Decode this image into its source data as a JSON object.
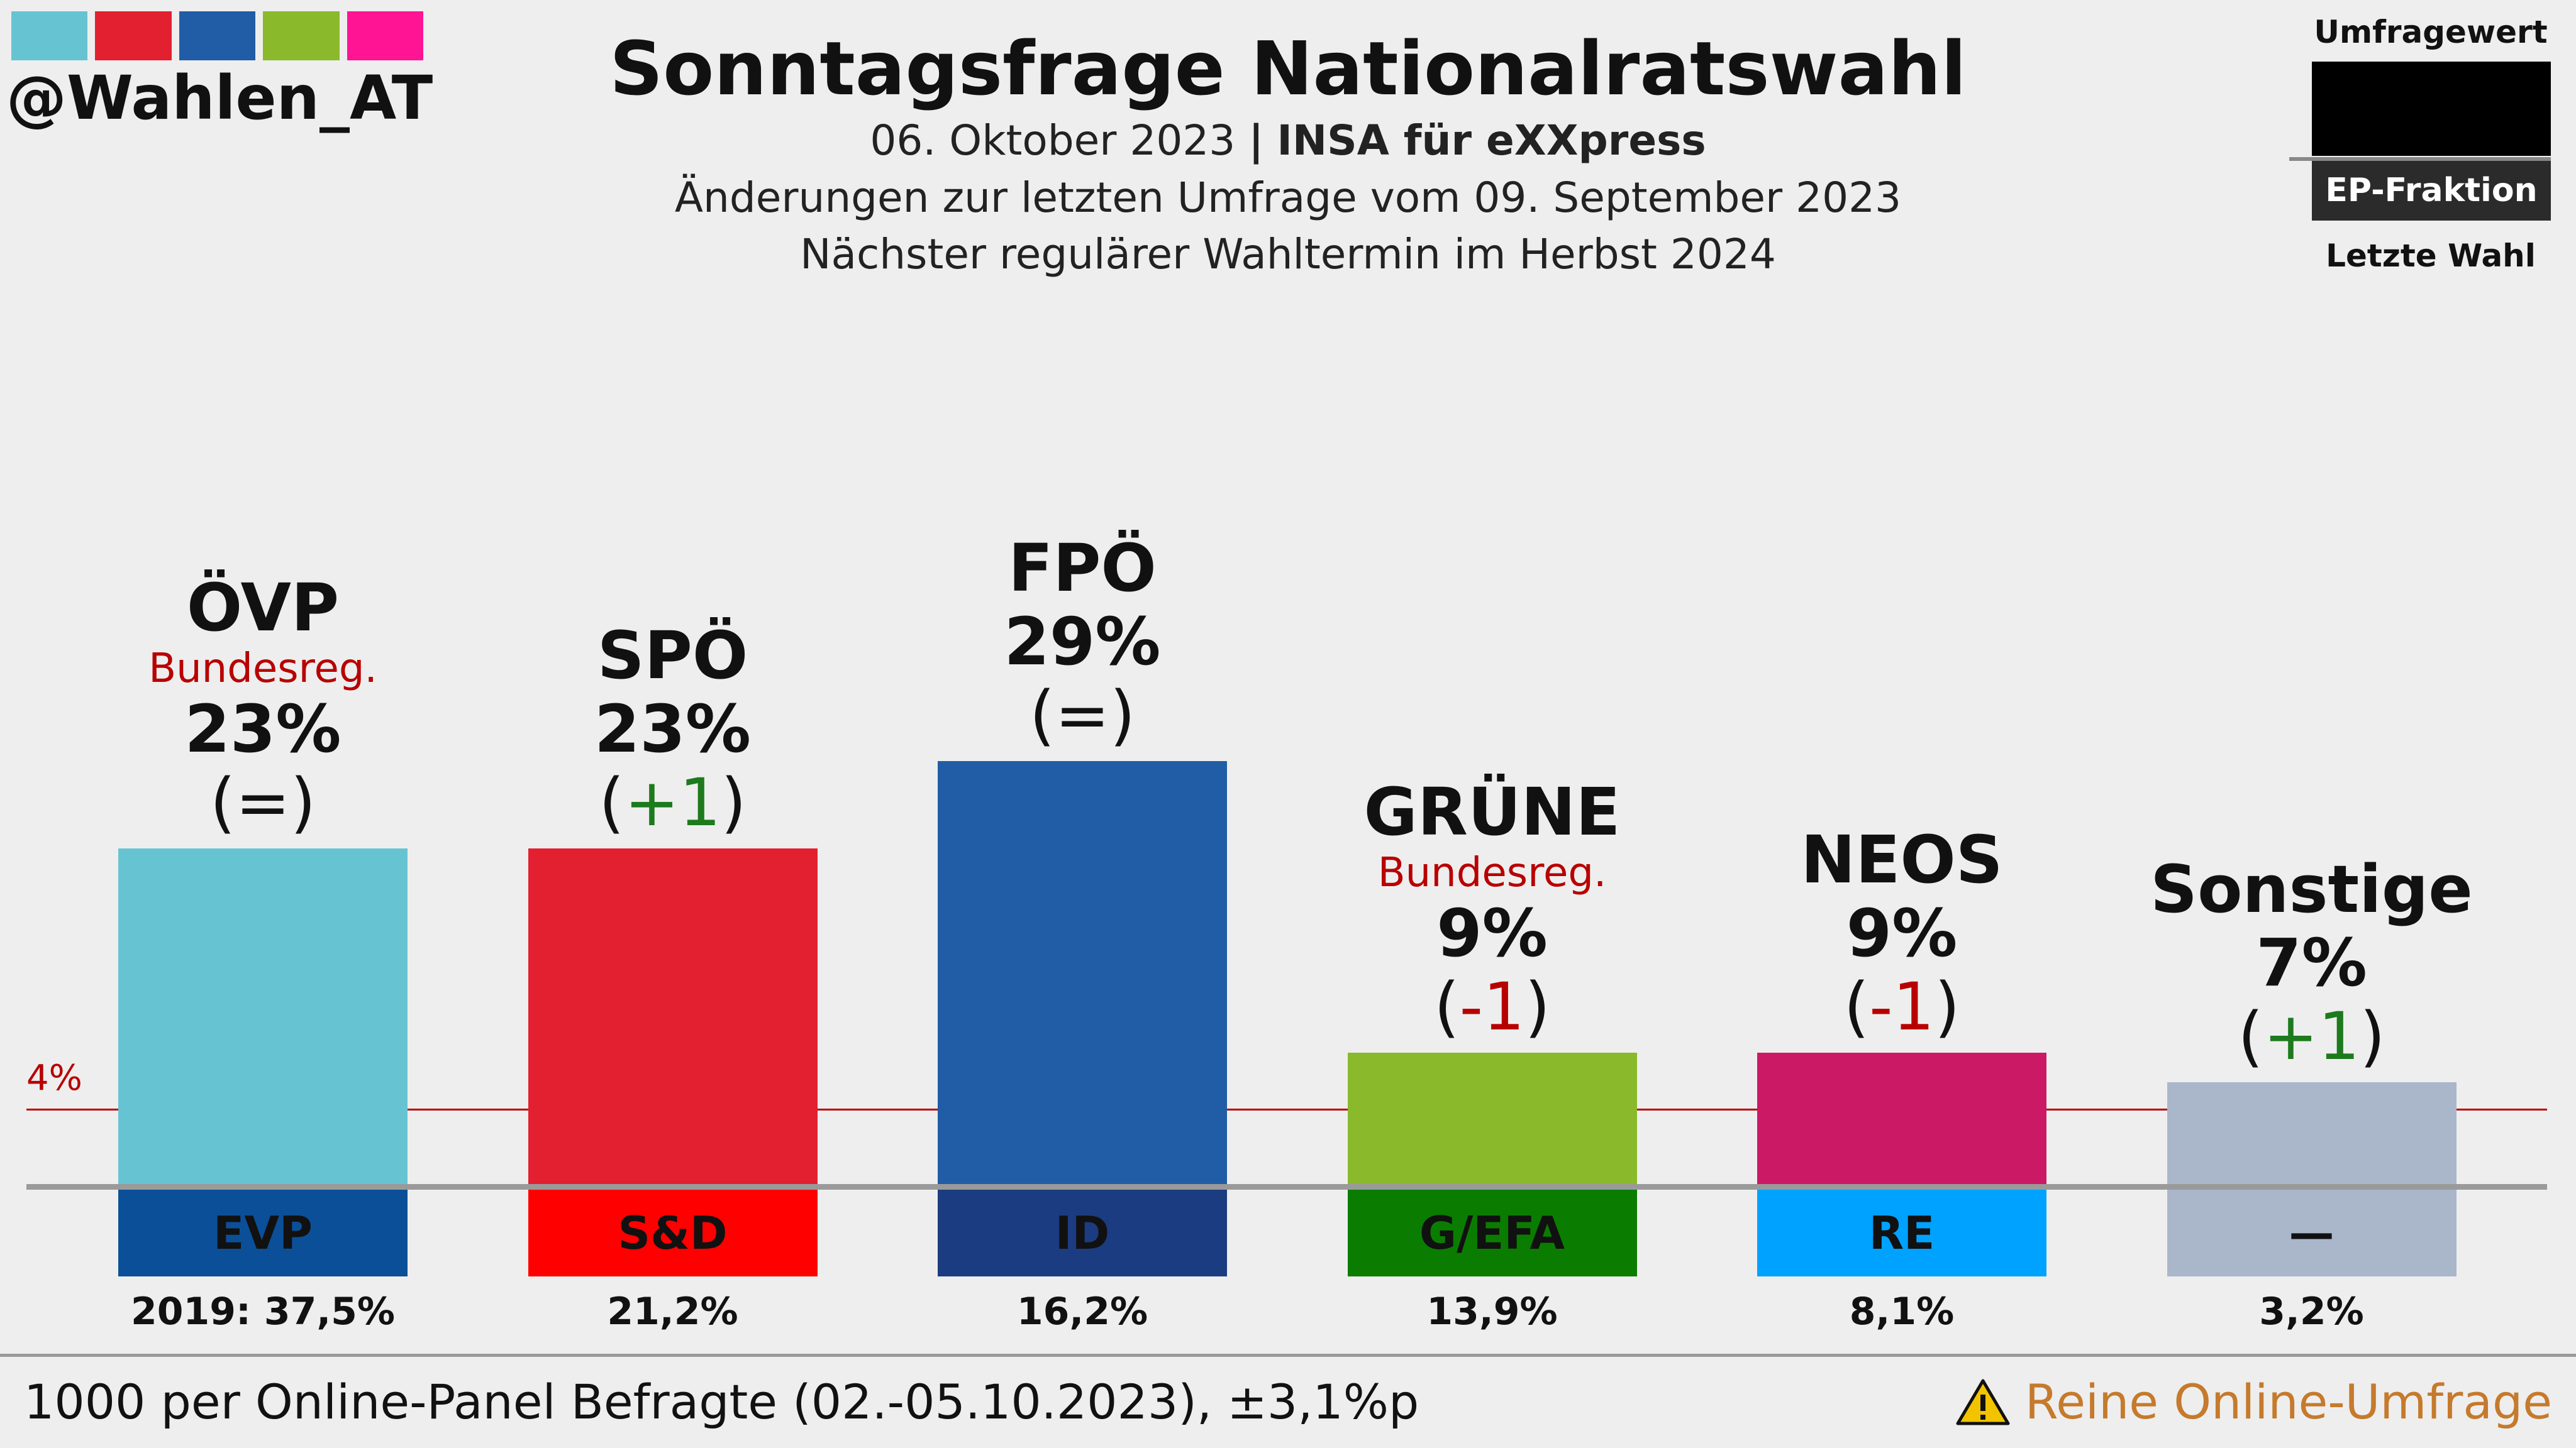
{
  "brand": {
    "handle": "@Wahlen_AT",
    "strip_colors": [
      "#66c4d2",
      "#e3202f",
      "#215da6",
      "#8ab92c",
      "#ff1493"
    ]
  },
  "header": {
    "title": "Sonntagsfrage Nationalratswahl",
    "date": "06. Oktober 2023",
    "separator": "|",
    "institute": "INSA für eXXpress",
    "changes_note": "Änderungen zur letzten Umfrage vom 09. September 2023",
    "next_election": "Nächster regulärer Wahltermin im Herbst 2024"
  },
  "legend": {
    "poll_value": "Umfragewert",
    "ep_group": "EP-Fraktion",
    "last_election": "Letzte Wahl"
  },
  "threshold": {
    "label": "4%",
    "value": 4
  },
  "footer": {
    "sample": "1000 per Online-Panel Befragte (02.-05.10.2023), ±3,1%p",
    "warning": "Reine Online-Umfrage",
    "warning_icon": "warning-triangle-icon"
  },
  "chart_data": {
    "type": "bar",
    "title": "Sonntagsfrage Nationalratswahl",
    "categories": [
      "ÖVP",
      "SPÖ",
      "FPÖ",
      "GRÜNE",
      "NEOS",
      "Sonstige"
    ],
    "values": [
      23,
      23,
      29,
      9,
      9,
      7
    ],
    "value_labels": [
      "23%",
      "23%",
      "29%",
      "9%",
      "9%",
      "7%"
    ],
    "change": [
      "(=)",
      "(+1)",
      "(=)",
      "(-1)",
      "(-1)",
      "(+1)"
    ],
    "change_sign": [
      "=",
      "+",
      "=",
      "-",
      "-",
      "+"
    ],
    "change_inner": [
      "=",
      "+1",
      "=",
      "-1",
      "-1",
      "+1"
    ],
    "government": [
      "Bundesreg.",
      "",
      "",
      "Bundesreg.",
      "",
      ""
    ],
    "ep_group": [
      "EVP",
      "S&D",
      "ID",
      "G/EFA",
      "RE",
      "—"
    ],
    "last_election": [
      "2019: 37,5%",
      "21,2%",
      "16,2%",
      "13,9%",
      "8,1%",
      "3,2%"
    ],
    "bar_colors": [
      "#66c4d2",
      "#e3202f",
      "#215da6",
      "#8ab92c",
      "#cc1966",
      "#aab6ca"
    ],
    "ep_colors": [
      "#0b4f99",
      "#ff0000",
      "#1b3c80",
      "#0a7d00",
      "#00a2ff",
      "#aab6ca"
    ],
    "threshold_line": 4,
    "legend": "top-right"
  }
}
